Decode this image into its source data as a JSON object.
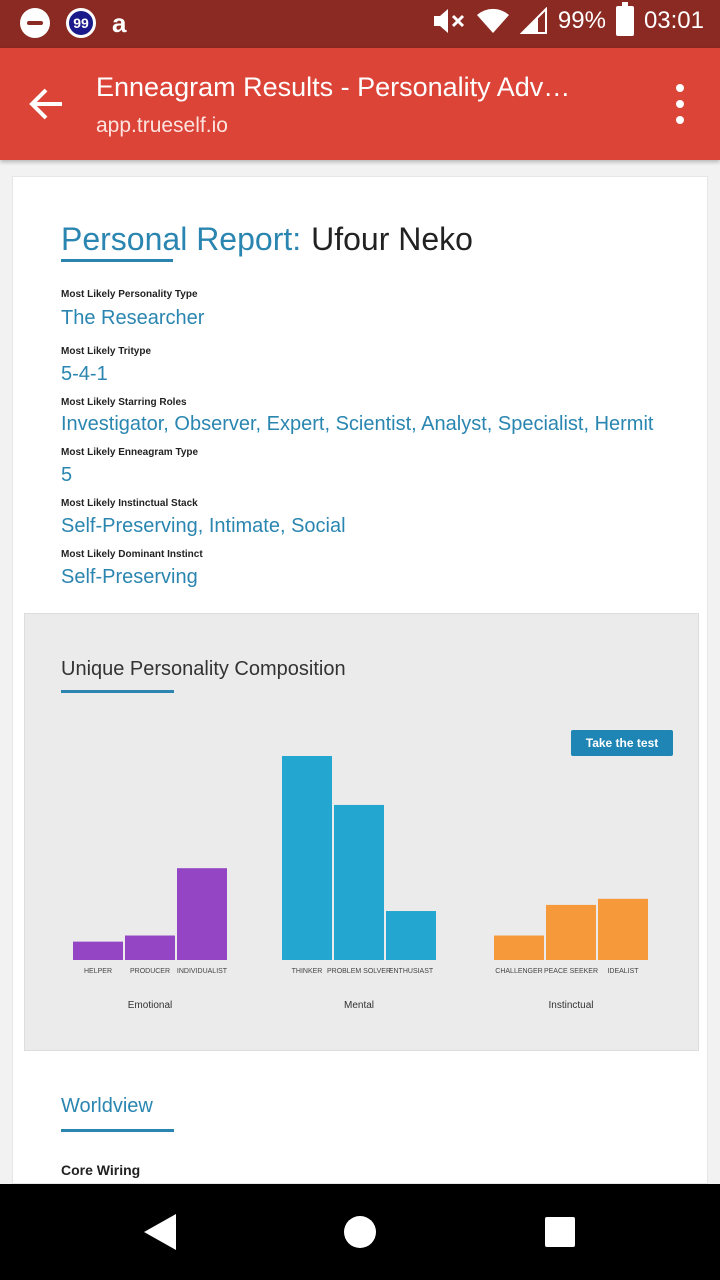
{
  "status_bar": {
    "badge_count": "99",
    "app_icon": "a",
    "battery": "99%",
    "time": "03:01",
    "icons": [
      "minus-circle-icon",
      "notification-99-icon",
      "app-a-icon",
      "mute-icon",
      "wifi-icon",
      "signal-icon",
      "battery-icon"
    ]
  },
  "app_bar": {
    "title": "Enneagram Results - Personality Adv…",
    "url": "app.trueself.io",
    "color": "#db4437"
  },
  "report": {
    "label": "Personal Report:",
    "name": "Ufour Neko",
    "fields": [
      {
        "label": "Most Likely Personality Type",
        "value": "The Researcher"
      },
      {
        "label": "Most Likely Tritype",
        "value": "5-4-1"
      },
      {
        "label": "Most Likely Starring Roles",
        "value": "Investigator, Observer, Expert, Scientist, Analyst, Specialist, Hermit"
      },
      {
        "label": "Most Likely Enneagram Type",
        "value": "5"
      },
      {
        "label": "Most Likely Instinctual Stack",
        "value": "Self-Preserving, Intimate, Social"
      },
      {
        "label": "Most Likely Dominant Instinct",
        "value": "Self-Preserving"
      }
    ]
  },
  "composition": {
    "title": "Unique Personality Composition",
    "button": "Take the test"
  },
  "chart_data": {
    "type": "bar",
    "groups": [
      {
        "name": "Emotional",
        "color": "#9445c4",
        "categories": [
          "HELPER",
          "PRODUCER",
          "INDIVIDUALIST"
        ],
        "values": [
          9,
          12,
          45
        ]
      },
      {
        "name": "Mental",
        "color": "#23a6cf",
        "categories": [
          "THINKER",
          "PROBLEM SOLVER",
          "ENTHUSIAST"
        ],
        "values": [
          100,
          76,
          24
        ]
      },
      {
        "name": "Instinctual",
        "color": "#f6993a",
        "categories": [
          "CHALLENGER",
          "PEACE SEEKER",
          "IDEALIST"
        ],
        "values": [
          12,
          27,
          30
        ]
      }
    ],
    "ylim": [
      0,
      100
    ]
  },
  "worldview": {
    "title": "Worldview",
    "subheading": "Core Wiring"
  },
  "nav_bar": {
    "icons": [
      "back-triangle-icon",
      "home-circle-icon",
      "recents-square-icon"
    ]
  }
}
